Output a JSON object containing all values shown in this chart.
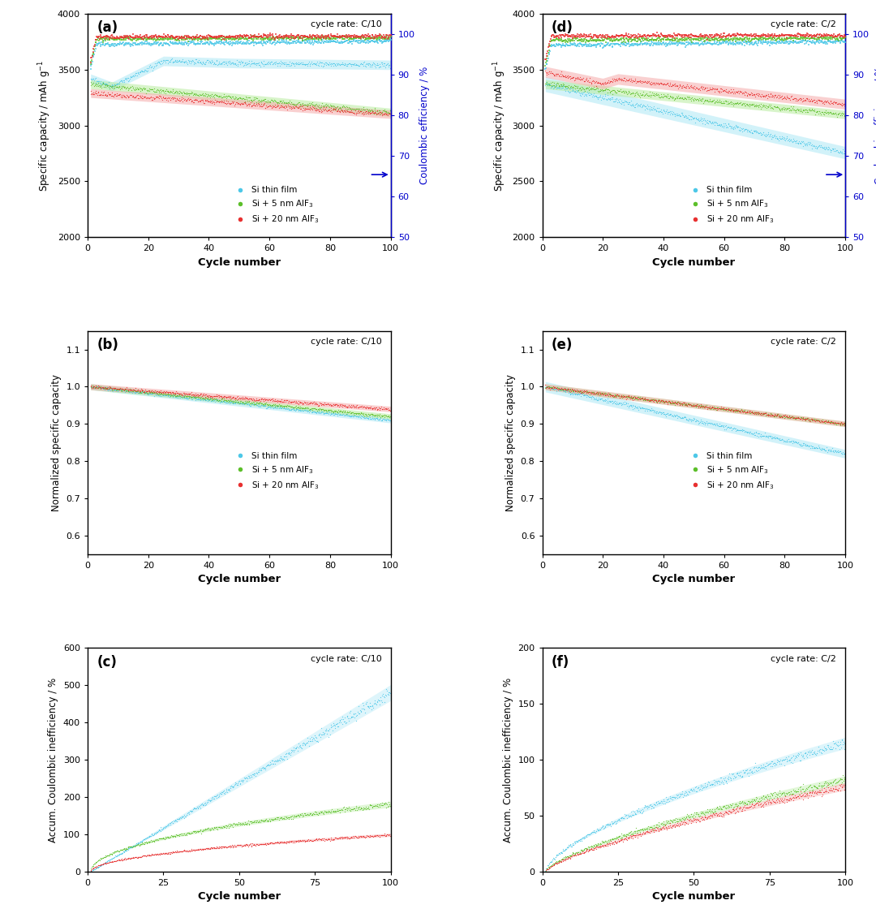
{
  "colors": {
    "cyan": "#4DC8E8",
    "green": "#5CBF2A",
    "red": "#E83030",
    "blue": "#0000CC",
    "cyan_light": "#AEE8F5",
    "green_light": "#B8ECA0",
    "red_light": "#F5AAAA"
  },
  "legend_labels": [
    "Si thin film",
    "Si + 5 nm AlF$_3$",
    "Si + 20 nm AlF$_3$"
  ],
  "panel_labels": [
    "(a)",
    "(b)",
    "(c)",
    "(d)",
    "(e)",
    "(f)"
  ],
  "cycle_rates": {
    "left": "cycle rate: C/10",
    "right": "cycle rate: C/2"
  },
  "subplot_a": {
    "ylabel": "Specific capacity / mAh g$^{-1}$",
    "ylabel2": "Coulombic efficiency / %",
    "ylim": [
      2000,
      4000
    ],
    "ylim2": [
      50,
      105
    ],
    "yticks": [
      2000,
      2500,
      3000,
      3500,
      4000
    ],
    "yticks2": [
      50,
      60,
      70,
      80,
      90,
      100
    ],
    "xlim": [
      0,
      100
    ],
    "xticks": [
      0,
      20,
      40,
      60,
      80,
      100
    ]
  },
  "subplot_b": {
    "ylabel": "Normalized specific capacity",
    "ylim": [
      0.55,
      1.15
    ],
    "yticks": [
      0.6,
      0.7,
      0.8,
      0.9,
      1.0,
      1.1
    ],
    "xlim": [
      0,
      100
    ],
    "xticks": [
      0,
      20,
      40,
      60,
      80,
      100
    ]
  },
  "subplot_c": {
    "ylabel": "Accum. Coulombic inefficiency / %",
    "ylim": [
      0,
      600
    ],
    "yticks": [
      0,
      100,
      200,
      300,
      400,
      500,
      600
    ],
    "xlim": [
      0,
      100
    ],
    "xticks": [
      0,
      25,
      50,
      75,
      100
    ]
  },
  "subplot_d": {
    "ylabel": "Specific capacity / mAh g$^{-1}$",
    "ylabel2": "Coulombic efficiency / %",
    "ylim": [
      2000,
      4000
    ],
    "ylim2": [
      50,
      105
    ],
    "yticks": [
      2000,
      2500,
      3000,
      3500,
      4000
    ],
    "yticks2": [
      50,
      60,
      70,
      80,
      90,
      100
    ],
    "xlim": [
      0,
      100
    ],
    "xticks": [
      0,
      20,
      40,
      60,
      80,
      100
    ]
  },
  "subplot_e": {
    "ylabel": "Normalized specific capacity",
    "ylim": [
      0.55,
      1.15
    ],
    "yticks": [
      0.6,
      0.7,
      0.8,
      0.9,
      1.0,
      1.1
    ],
    "xlim": [
      0,
      100
    ],
    "xticks": [
      0,
      20,
      40,
      60,
      80,
      100
    ]
  },
  "subplot_f": {
    "ylabel": "Accum. Coulombic inefficiency / %",
    "ylim": [
      0,
      200
    ],
    "yticks": [
      0,
      50,
      100,
      150,
      200
    ],
    "xlim": [
      0,
      100
    ],
    "xticks": [
      0,
      25,
      50,
      75,
      100
    ]
  }
}
